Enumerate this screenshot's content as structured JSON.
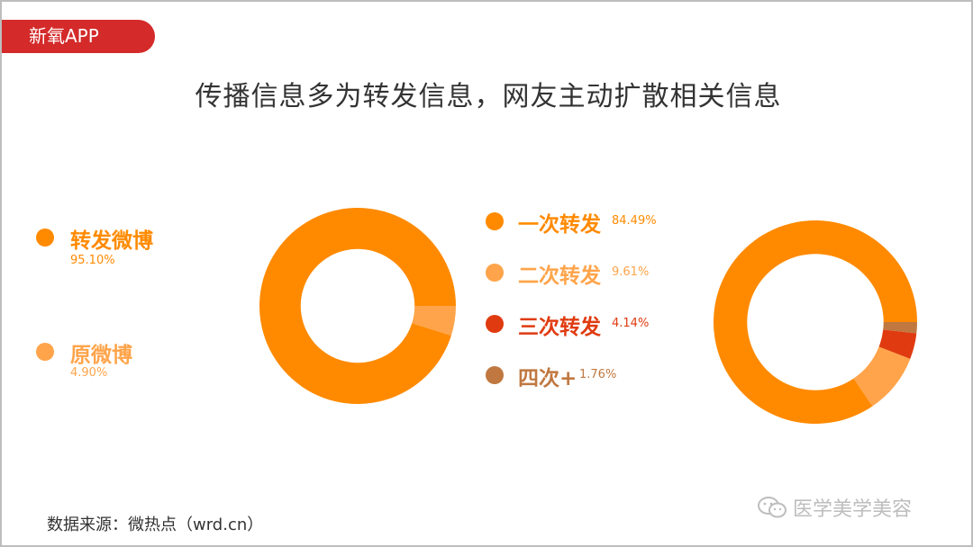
{
  "brand": {
    "name": "新氧APP"
  },
  "headline": "传播信息多为转发信息，网友主动扩散相关信息",
  "source_note": "数据来源：微热点（wrd.cn）",
  "watermark": {
    "icon": "wechat-icon",
    "text": "医学美学美容"
  },
  "colors": {
    "orange": "#ff8a00",
    "light_orange": "#ffa44a",
    "red": "#e03b10",
    "brown": "#c07840",
    "brand_red": "#d42a2a"
  },
  "chart_data": [
    {
      "type": "pie",
      "title": "",
      "categories": [
        "转发微博",
        "原微博"
      ],
      "values": [
        95.1,
        4.9
      ],
      "value_labels": [
        "95.10%",
        "4.90%"
      ],
      "colors": [
        "#ff8a00",
        "#ffa44a"
      ],
      "legend": "left"
    },
    {
      "type": "pie",
      "title": "",
      "categories": [
        "一次转发",
        "二次转发",
        "三次转发",
        "四次+"
      ],
      "values": [
        84.49,
        9.61,
        4.14,
        1.76
      ],
      "value_labels": [
        "84.49%",
        "9.61%",
        "4.14%",
        "1.76%"
      ],
      "colors": [
        "#ff8a00",
        "#ffa44a",
        "#e03b10",
        "#c07840"
      ],
      "legend": "left"
    }
  ]
}
